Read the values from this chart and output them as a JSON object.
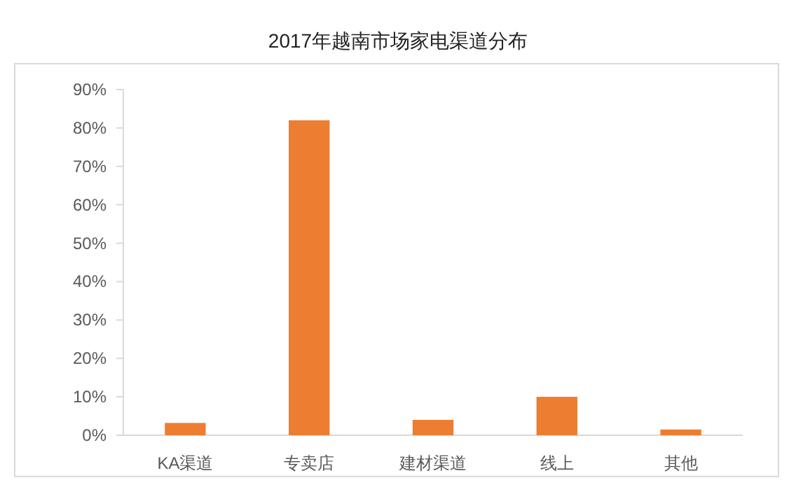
{
  "chart_data": {
    "type": "bar",
    "title": "2017年越南市场家电渠道分布",
    "categories": [
      "KA渠道",
      "专卖店",
      "建材渠道",
      "线上",
      "其他"
    ],
    "values": [
      3.2,
      82,
      4,
      10,
      1.5
    ],
    "color": "#ed7d31",
    "ylim": [
      0,
      90
    ],
    "yticks": [
      {
        "value": 0,
        "label": "0%"
      },
      {
        "value": 10,
        "label": "10%"
      },
      {
        "value": 20,
        "label": "20%"
      },
      {
        "value": 30,
        "label": "30%"
      },
      {
        "value": 40,
        "label": "40%"
      },
      {
        "value": 50,
        "label": "50%"
      },
      {
        "value": 60,
        "label": "60%"
      },
      {
        "value": 70,
        "label": "70%"
      },
      {
        "value": 80,
        "label": "80%"
      },
      {
        "value": 90,
        "label": "90%"
      }
    ]
  }
}
